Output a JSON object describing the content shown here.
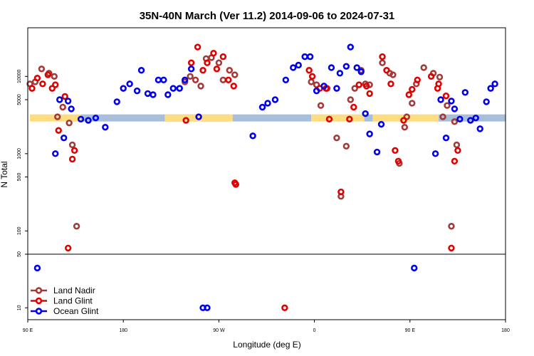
{
  "chart_data": {
    "type": "scatter",
    "title": "35N-40N March (Ver 11.2)   2014-09-06 to 2024-07-31",
    "xlabel": "Longitude (deg E)",
    "ylabel": "N Total",
    "x_ticks": [
      {
        "x": 90,
        "label": "90 E"
      },
      {
        "x": 180,
        "label": "180"
      },
      {
        "x": 270,
        "label": "90 W"
      },
      {
        "x": 360,
        "label": "0"
      },
      {
        "x": 450,
        "label": "90 E"
      },
      {
        "x": 540,
        "label": "180"
      }
    ],
    "xlim": [
      90,
      540
    ],
    "upper_panel": {
      "yscale": "log",
      "ylim": [
        50,
        40000
      ],
      "ticks": [
        {
          "v": 50,
          "label": "50"
        },
        {
          "v": 100,
          "label": "100"
        },
        {
          "v": 500,
          "label": "500"
        },
        {
          "v": 1000,
          "label": "1000"
        },
        {
          "v": 5000,
          "label": "5000"
        },
        {
          "v": 10000,
          "label": "10000"
        }
      ]
    },
    "lower_panel": {
      "yscale": "log",
      "ylim": [
        7,
        50
      ],
      "ticks": [
        {
          "v": 10,
          "label": "10"
        },
        {
          "v": 50,
          "label": "50"
        }
      ]
    },
    "band": {
      "y": 2900,
      "colors": [
        "#fedc80",
        "#a8bfdc"
      ],
      "segments": [
        {
          "x0": 92,
          "x1": 140,
          "color": "#fedc80"
        },
        {
          "x0": 140,
          "x1": 280,
          "color": "#a8bfdc"
        },
        {
          "x0": 219,
          "x1": 283,
          "color": "#fedc80"
        },
        {
          "x0": 283,
          "x1": 357,
          "color": "#a8bfdc"
        },
        {
          "x0": 357,
          "x1": 407,
          "color": "#fedc80"
        },
        {
          "x0": 407,
          "x1": 415,
          "color": "#a8bfdc"
        },
        {
          "x0": 415,
          "x1": 477,
          "color": "#fedc80"
        },
        {
          "x0": 477,
          "x1": 540,
          "color": "#a8bfdc"
        }
      ]
    },
    "series": [
      {
        "name": "Land Nadir",
        "color": "#a33a3a",
        "points": [
          [
            92,
            8000
          ],
          [
            97,
            8500
          ],
          [
            103,
            12500
          ],
          [
            110,
            11000
          ],
          [
            115,
            10000
          ],
          [
            118,
            3000
          ],
          [
            123,
            4000
          ],
          [
            129,
            2500
          ],
          [
            132,
            1300
          ],
          [
            136,
            115
          ],
          [
            238,
            8500
          ],
          [
            243,
            10000
          ],
          [
            248,
            9000
          ],
          [
            253,
            7500
          ],
          [
            258,
            17000
          ],
          [
            263,
            17500
          ],
          [
            270,
            15000
          ],
          [
            274,
            9000
          ],
          [
            280,
            12000
          ],
          [
            285,
            10500
          ],
          [
            357,
            8500
          ],
          [
            362,
            7800
          ],
          [
            366,
            4200
          ],
          [
            372,
            7000
          ],
          [
            381,
            1600
          ],
          [
            385,
            280
          ],
          [
            390,
            1250
          ],
          [
            394,
            5000
          ],
          [
            398,
            7000
          ],
          [
            404,
            12000
          ],
          [
            408,
            8000
          ],
          [
            412,
            7800
          ],
          [
            424,
            15000
          ],
          [
            431,
            11000
          ],
          [
            434,
            10500
          ],
          [
            440,
            750
          ],
          [
            445,
            2200
          ],
          [
            447,
            3000
          ],
          [
            452,
            4500
          ],
          [
            456,
            8000
          ],
          [
            463,
            13000
          ],
          [
            472,
            11000
          ],
          [
            478,
            9800
          ],
          [
            481,
            3000
          ],
          [
            485,
            4200
          ],
          [
            492,
            2600
          ],
          [
            494,
            1300
          ],
          [
            489,
            115
          ]
        ]
      },
      {
        "name": "Land Glint",
        "color": "#e00000",
        "points": [
          [
            94,
            7000
          ],
          [
            99,
            9500
          ],
          [
            104,
            8000
          ],
          [
            109,
            10500
          ],
          [
            113,
            7000
          ],
          [
            116,
            7800
          ],
          [
            119,
            2000
          ],
          [
            125,
            5500
          ],
          [
            132,
            850
          ],
          [
            134,
            1100
          ],
          [
            128,
            60
          ],
          [
            239,
            2700
          ],
          [
            244,
            15000
          ],
          [
            250,
            24000
          ],
          [
            255,
            12000
          ],
          [
            259,
            15000
          ],
          [
            265,
            20000
          ],
          [
            268,
            12500
          ],
          [
            274,
            18000
          ],
          [
            279,
            9000
          ],
          [
            284,
            7500
          ],
          [
            285,
            420
          ],
          [
            286,
            400
          ],
          [
            332,
            10
          ],
          [
            355,
            12000
          ],
          [
            358,
            10000
          ],
          [
            365,
            7000
          ],
          [
            371,
            7000
          ],
          [
            374,
            2800
          ],
          [
            385,
            320
          ],
          [
            393,
            2800
          ],
          [
            397,
            4000
          ],
          [
            402,
            7800
          ],
          [
            409,
            7500
          ],
          [
            412,
            6000
          ],
          [
            424,
            18000
          ],
          [
            428,
            12000
          ],
          [
            432,
            8000
          ],
          [
            436,
            1100
          ],
          [
            439,
            800
          ],
          [
            444,
            2700
          ],
          [
            449,
            5800
          ],
          [
            452,
            6800
          ],
          [
            457,
            9000
          ],
          [
            470,
            10000
          ],
          [
            476,
            7000
          ],
          [
            477,
            8000
          ],
          [
            484,
            5600
          ],
          [
            489,
            60
          ],
          [
            492,
            800
          ],
          [
            495,
            1100
          ]
        ]
      },
      {
        "name": "Ocean Glint",
        "color": "#0000ee",
        "points": [
          [
            99,
            33
          ],
          [
            120,
            5000
          ],
          [
            116,
            1000
          ],
          [
            124,
            1600
          ],
          [
            128,
            4800
          ],
          [
            131,
            3800
          ],
          [
            140,
            2800
          ],
          [
            147,
            2700
          ],
          [
            154,
            2900
          ],
          [
            163,
            2200
          ],
          [
            174,
            4700
          ],
          [
            180,
            7000
          ],
          [
            186,
            8000
          ],
          [
            193,
            6500
          ],
          [
            197,
            12000
          ],
          [
            203,
            6000
          ],
          [
            208,
            5800
          ],
          [
            213,
            9000
          ],
          [
            218,
            9000
          ],
          [
            222,
            5800
          ],
          [
            227,
            7000
          ],
          [
            233,
            7000
          ],
          [
            238,
            9000
          ],
          [
            244,
            12500
          ],
          [
            251,
            3000
          ],
          [
            255,
            10
          ],
          [
            259,
            10
          ],
          [
            302,
            1700
          ],
          [
            311,
            4000
          ],
          [
            316,
            4500
          ],
          [
            323,
            5000
          ],
          [
            333,
            9000
          ],
          [
            340,
            13000
          ],
          [
            345,
            14000
          ],
          [
            351,
            18000
          ],
          [
            356,
            18000
          ],
          [
            362,
            6500
          ],
          [
            369,
            7500
          ],
          [
            376,
            13000
          ],
          [
            381,
            7000
          ],
          [
            384,
            11000
          ],
          [
            390,
            13500
          ],
          [
            394,
            24000
          ],
          [
            400,
            13000
          ],
          [
            404,
            11500
          ],
          [
            408,
            3300
          ],
          [
            412,
            1800
          ],
          [
            419,
            1050
          ],
          [
            423,
            2400
          ],
          [
            454,
            33
          ],
          [
            474,
            1000
          ],
          [
            479,
            5000
          ],
          [
            484,
            1600
          ],
          [
            489,
            4800
          ],
          [
            492,
            3800
          ],
          [
            497,
            2800
          ],
          [
            502,
            6200
          ],
          [
            507,
            2700
          ],
          [
            512,
            2900
          ],
          [
            516,
            2100
          ],
          [
            522,
            4700
          ],
          [
            526,
            7000
          ],
          [
            530,
            8000
          ]
        ]
      }
    ],
    "legend": {
      "placement": "bottom-left"
    }
  }
}
